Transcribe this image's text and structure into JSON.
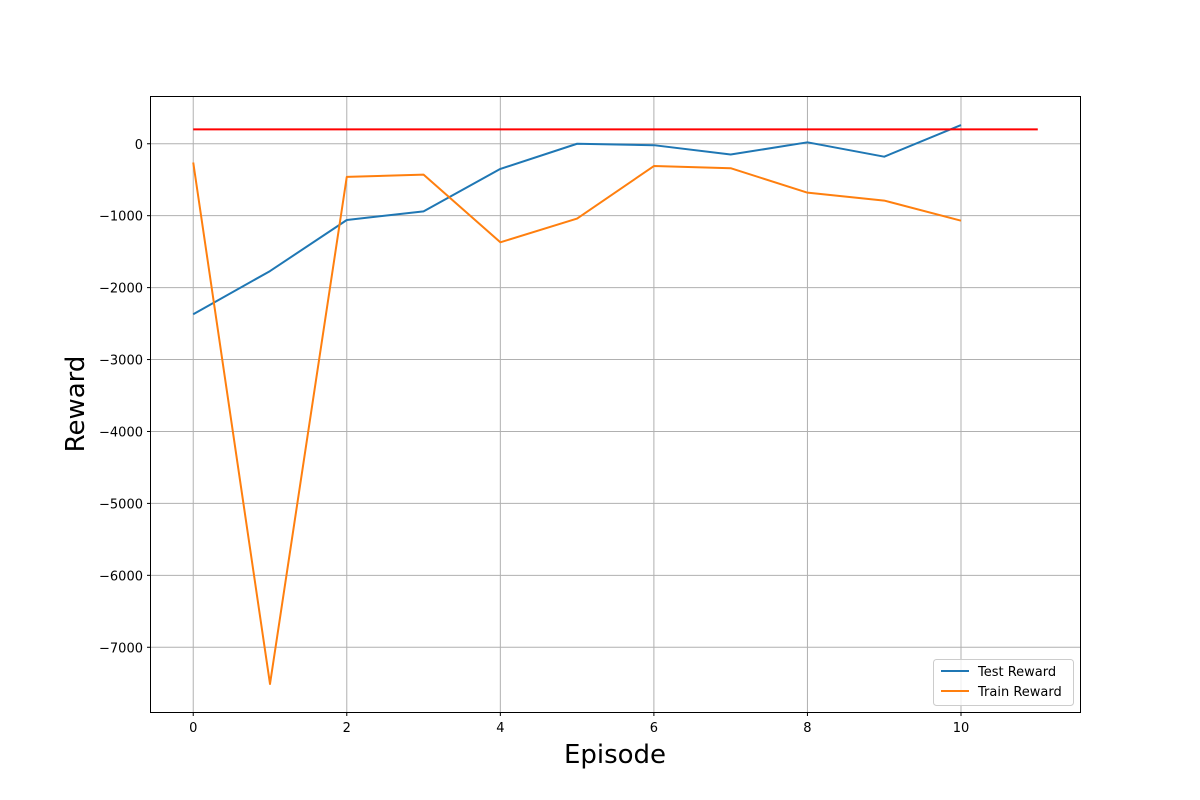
{
  "chart_data": {
    "type": "line",
    "title": "",
    "xlabel": "Episode",
    "ylabel": "Reward",
    "xlim": [
      -0.55,
      11.55
    ],
    "ylim": [
      -7900,
      650
    ],
    "xticks": [
      0,
      2,
      4,
      6,
      8,
      10
    ],
    "yticks": [
      0,
      -1000,
      -2000,
      -3000,
      -4000,
      -5000,
      -6000,
      -7000
    ],
    "x_tick_labels": [
      "0",
      "2",
      "4",
      "6",
      "8",
      "10"
    ],
    "y_tick_labels": [
      "0",
      "−1000",
      "−2000",
      "−3000",
      "−4000",
      "−5000",
      "−6000",
      "−7000"
    ],
    "grid": true,
    "legend_position": "bottom-right",
    "series": [
      {
        "name": "Test Reward",
        "color": "#1f77b4",
        "x": [
          0,
          1,
          2,
          3,
          4,
          5,
          6,
          7,
          8,
          9,
          10
        ],
        "values": [
          -2370,
          -1770,
          -1060,
          -940,
          -350,
          0,
          -20,
          -150,
          20,
          -180,
          260
        ]
      },
      {
        "name": "Train Reward",
        "color": "#ff7f0e",
        "x": [
          0,
          1,
          2,
          3,
          4,
          5,
          6,
          7,
          8,
          9,
          10
        ],
        "values": [
          -260,
          -7510,
          -460,
          -430,
          -1370,
          -1040,
          -310,
          -340,
          -680,
          -790,
          -1070
        ]
      }
    ],
    "reference_line": {
      "color": "#ff0000",
      "y": 200,
      "x_start": 0,
      "x_end": 11
    }
  }
}
